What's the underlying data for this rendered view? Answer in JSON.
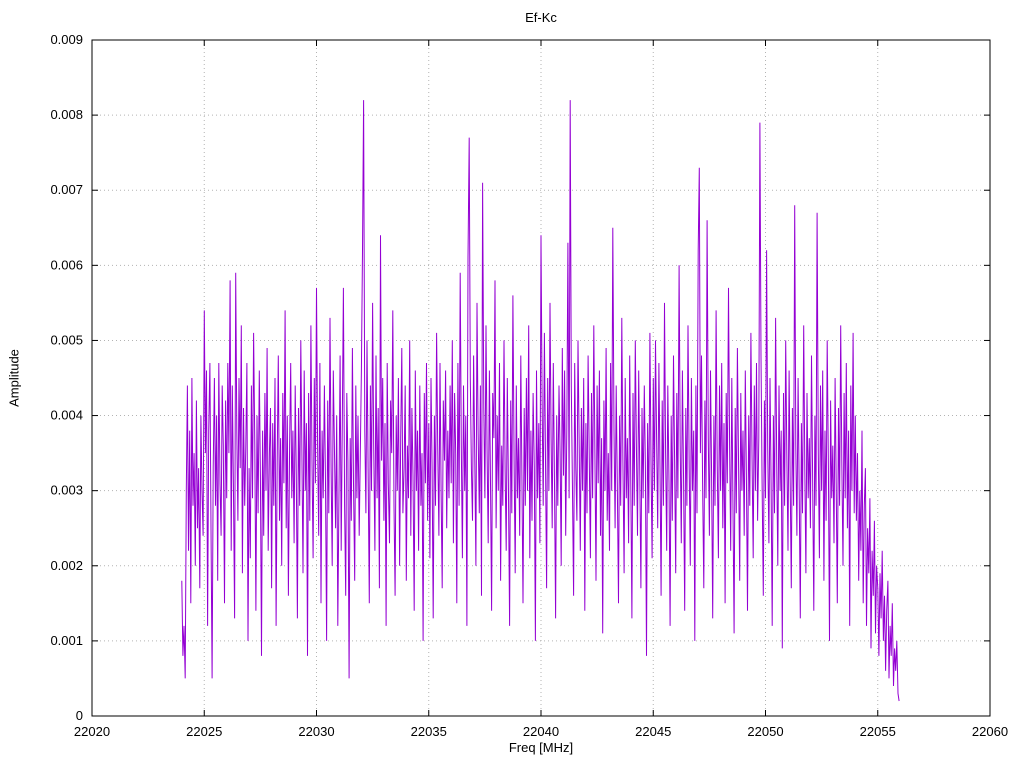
{
  "chart_data": {
    "type": "line",
    "title": "Ef-Kc",
    "xlabel": "Freq [MHz]",
    "ylabel": "Amplitude",
    "xlim": [
      22020,
      22060
    ],
    "ylim": [
      0,
      0.009
    ],
    "grid": true,
    "legend": "none",
    "series_name": "Ef-Kc",
    "series_color": "#9400d3",
    "x_ticks": [
      22020,
      22025,
      22030,
      22035,
      22040,
      22045,
      22050,
      22055,
      22060
    ],
    "x_tick_labels": [
      "22020",
      "22025",
      "22030",
      "22035",
      "22040",
      "22045",
      "22050",
      "22055",
      "22060"
    ],
    "y_ticks": [
      0,
      0.001,
      0.002,
      0.003,
      0.004,
      0.005,
      0.006,
      0.007,
      0.008,
      0.009
    ],
    "y_tick_labels": [
      "0",
      "0.001",
      "0.002",
      "0.003",
      "0.004",
      "0.005",
      "0.006",
      "0.007",
      "0.008",
      "0.009"
    ],
    "x_start": 22024.0,
    "x_step": 0.05,
    "y_scale": 0.0001,
    "values": [
      18,
      8,
      12,
      5,
      30,
      44,
      22,
      38,
      15,
      45,
      28,
      35,
      20,
      42,
      25,
      33,
      17,
      40,
      30,
      24,
      54,
      35,
      46,
      12,
      38,
      47,
      25,
      5,
      33,
      45,
      28,
      40,
      18,
      47,
      31,
      24,
      44,
      36,
      15,
      42,
      29,
      47,
      35,
      58,
      22,
      44,
      31,
      13,
      59,
      38,
      26,
      45,
      33,
      52,
      19,
      41,
      28,
      36,
      47,
      10,
      33,
      21,
      44,
      29,
      51,
      36,
      14,
      40,
      27,
      46,
      32,
      8,
      38,
      24,
      43,
      30,
      49,
      22,
      35,
      41,
      17,
      39,
      28,
      45,
      12,
      34,
      48,
      26,
      37,
      20,
      43,
      31,
      54,
      25,
      40,
      16,
      36,
      47,
      29,
      38,
      23,
      44,
      32,
      13,
      41,
      28,
      50,
      35,
      19,
      46,
      30,
      39,
      8,
      43,
      26,
      52,
      34,
      21,
      45,
      31,
      57,
      36,
      24,
      47,
      15,
      38,
      29,
      44,
      31,
      10,
      42,
      27,
      53,
      33,
      20,
      46,
      35,
      25,
      40,
      12,
      30,
      48,
      22,
      39,
      57,
      28,
      16,
      43,
      34,
      5,
      37,
      26,
      49,
      31,
      18,
      44,
      29,
      40,
      24,
      35,
      46,
      62,
      82,
      38,
      27,
      50,
      33,
      15,
      44,
      30,
      55,
      36,
      22,
      48,
      29,
      41,
      17,
      64,
      34,
      45,
      26,
      39,
      12,
      47,
      31,
      23,
      42,
      35,
      54,
      28,
      16,
      40,
      30,
      45,
      20,
      37,
      49,
      27,
      33,
      44,
      18,
      36,
      29,
      50,
      24,
      41,
      32,
      14,
      46,
      30,
      38,
      22,
      44,
      28,
      35,
      10,
      43,
      31,
      47,
      26,
      39,
      21,
      45,
      33,
      13,
      40,
      28,
      51,
      36,
      24,
      47,
      30,
      17,
      42,
      34,
      46,
      25,
      38,
      29,
      44,
      31,
      50,
      23,
      43,
      35,
      15,
      47,
      28,
      59,
      36,
      21,
      44,
      30,
      40,
      12,
      61,
      77,
      45,
      33,
      26,
      48,
      34,
      20,
      55,
      38,
      27,
      44,
      16,
      71,
      41,
      29,
      52,
      35,
      23,
      46,
      31,
      14,
      43,
      37,
      58,
      25,
      40,
      30,
      47,
      18,
      36,
      28,
      50,
      33,
      22,
      45,
      31,
      12,
      42,
      27,
      56,
      34,
      19,
      44,
      29,
      37,
      24,
      48,
      32,
      15,
      41,
      28,
      45,
      30,
      52,
      21,
      38,
      26,
      43,
      33,
      10,
      46,
      29,
      39,
      23,
      64,
      42,
      28,
      51,
      34,
      17,
      45,
      30,
      55,
      37,
      25,
      47,
      31,
      13,
      40,
      28,
      44,
      35,
      20,
      49,
      32,
      46,
      24,
      38,
      63,
      29,
      82,
      44,
      31,
      16,
      47,
      33,
      26,
      50,
      36,
      22,
      41,
      30,
      45,
      14,
      39,
      27,
      48,
      34,
      21,
      43,
      29,
      52,
      35,
      18,
      44,
      31,
      46,
      24,
      37,
      11,
      42,
      30,
      49,
      26,
      35,
      22,
      47,
      30,
      65,
      38,
      25,
      44,
      31,
      15,
      40,
      28,
      53,
      34,
      19,
      45,
      29,
      37,
      23,
      48,
      31,
      13,
      43,
      28,
      50,
      36,
      24,
      46,
      32,
      17,
      41,
      29,
      44,
      33,
      8,
      39,
      27,
      51,
      34,
      21,
      45,
      30,
      50,
      37,
      25,
      47,
      33,
      16,
      42,
      28,
      55,
      35,
      22,
      44,
      31,
      12,
      40,
      26,
      48,
      34,
      19,
      43,
      29,
      60,
      36,
      23,
      46,
      31,
      14,
      41,
      28,
      52,
      33,
      20,
      45,
      30,
      38,
      10,
      44,
      27,
      62,
      73,
      35,
      48,
      31,
      17,
      42,
      29,
      66,
      37,
      24,
      46,
      32,
      13,
      40,
      28,
      54,
      34,
      21,
      44,
      30,
      47,
      25,
      39,
      15,
      43,
      31,
      57,
      36,
      22,
      45,
      29,
      11,
      41,
      27,
      49,
      33,
      18,
      43,
      30,
      38,
      24,
      46,
      32,
      14,
      40,
      28,
      51,
      35,
      21,
      44,
      30,
      47,
      26,
      37,
      79,
      48,
      31,
      16,
      42,
      29,
      62,
      36,
      23,
      45,
      31,
      12,
      40,
      27,
      53,
      34,
      20,
      44,
      30,
      38,
      9,
      43,
      28,
      50,
      35,
      22,
      46,
      31,
      17,
      41,
      28,
      68,
      36,
      24,
      45,
      30,
      13,
      39,
      27,
      52,
      33,
      19,
      43,
      29,
      37,
      25,
      48,
      32,
      14,
      40,
      28,
      67,
      35,
      21,
      44,
      30,
      46,
      18,
      38,
      26,
      50,
      33,
      10,
      42,
      29,
      36,
      23,
      45,
      31,
      15,
      41,
      28,
      52,
      34,
      20,
      43,
      29,
      47,
      25,
      38,
      12,
      44,
      30,
      51,
      27,
      40,
      26,
      35,
      18,
      30,
      22,
      38,
      15,
      28,
      33,
      12,
      25,
      19,
      29,
      9,
      22,
      16,
      26,
      11,
      20,
      17,
      8,
      19,
      13,
      22,
      10,
      16,
      6,
      14,
      18,
      5,
      12,
      8,
      15,
      4,
      9,
      6,
      10,
      3,
      2
    ]
  }
}
